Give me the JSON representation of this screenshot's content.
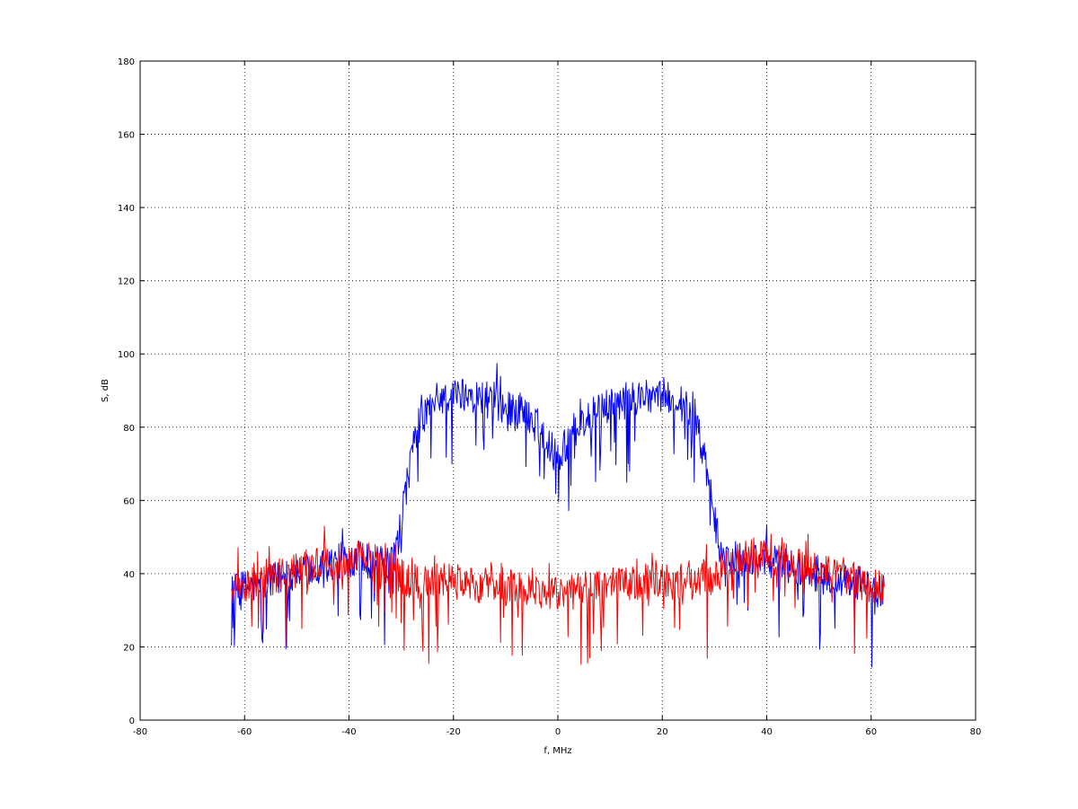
{
  "chart_data": {
    "type": "line",
    "title": "",
    "xlabel": "f, MHz",
    "ylabel": "S, dB",
    "xlim": [
      -80,
      80
    ],
    "ylim": [
      0,
      180
    ],
    "xticks": [
      -80,
      -60,
      -40,
      -20,
      0,
      20,
      40,
      60,
      80
    ],
    "yticks": [
      0,
      20,
      40,
      60,
      80,
      100,
      120,
      140,
      160,
      180
    ],
    "grid": true,
    "legend": "none",
    "series": [
      {
        "color": "#0000ff",
        "x": [
          -62.5,
          -60,
          -57.5,
          -55,
          -52.5,
          -50,
          -47.5,
          -45,
          -42.5,
          -40,
          -37.5,
          -35,
          -32.5,
          -31,
          -30,
          -29,
          -28,
          -27,
          -26,
          -25,
          -22.5,
          -20,
          -17.5,
          -15,
          -12.5,
          -10,
          -7.5,
          -5,
          -2.5,
          -1,
          0,
          1,
          2.5,
          5,
          7.5,
          10,
          12.5,
          15,
          17.5,
          20,
          22.5,
          25,
          26,
          27,
          28,
          29,
          30,
          31,
          32.5,
          35,
          37.5,
          40,
          42.5,
          45,
          47.5,
          50,
          52.5,
          55,
          57.5,
          60,
          62.5
        ],
        "values": [
          35,
          36,
          37,
          38,
          39,
          40,
          41,
          42,
          43,
          44,
          44,
          43,
          42,
          46,
          55,
          64,
          72,
          78,
          82,
          85,
          88,
          89,
          89,
          88,
          87,
          86,
          84,
          82,
          78,
          74,
          72,
          74,
          78,
          82,
          84,
          86,
          87,
          88,
          89,
          89,
          88,
          85,
          82,
          78,
          72,
          64,
          55,
          46,
          42,
          43,
          44,
          44,
          43,
          42,
          41,
          40,
          39,
          38,
          37,
          36,
          35
        ]
      },
      {
        "color": "#ff0000",
        "x": [
          -62.5,
          -60,
          -57.5,
          -55,
          -52.5,
          -50,
          -47.5,
          -45,
          -42.5,
          -40,
          -37.5,
          -35,
          -32.5,
          -30,
          -27.5,
          -25,
          -22.5,
          -20,
          -17.5,
          -15,
          -12.5,
          -10,
          -7.5,
          -5,
          -2.5,
          0,
          2.5,
          5,
          7.5,
          10,
          12.5,
          15,
          17.5,
          20,
          22.5,
          25,
          27.5,
          30,
          32.5,
          35,
          37.5,
          40,
          42.5,
          45,
          47.5,
          50,
          52.5,
          55,
          57.5,
          60,
          62.5
        ],
        "values": [
          36,
          37,
          38,
          39,
          40,
          41,
          42,
          43,
          44,
          45,
          45,
          44,
          42,
          39,
          38,
          38,
          38,
          38,
          38,
          37,
          37,
          37,
          36,
          36,
          35,
          35,
          35,
          36,
          36,
          37,
          37,
          37,
          38,
          38,
          38,
          38,
          38,
          39,
          42,
          44,
          45,
          45,
          44,
          43,
          42,
          41,
          40,
          39,
          38,
          37,
          36
        ]
      }
    ]
  }
}
